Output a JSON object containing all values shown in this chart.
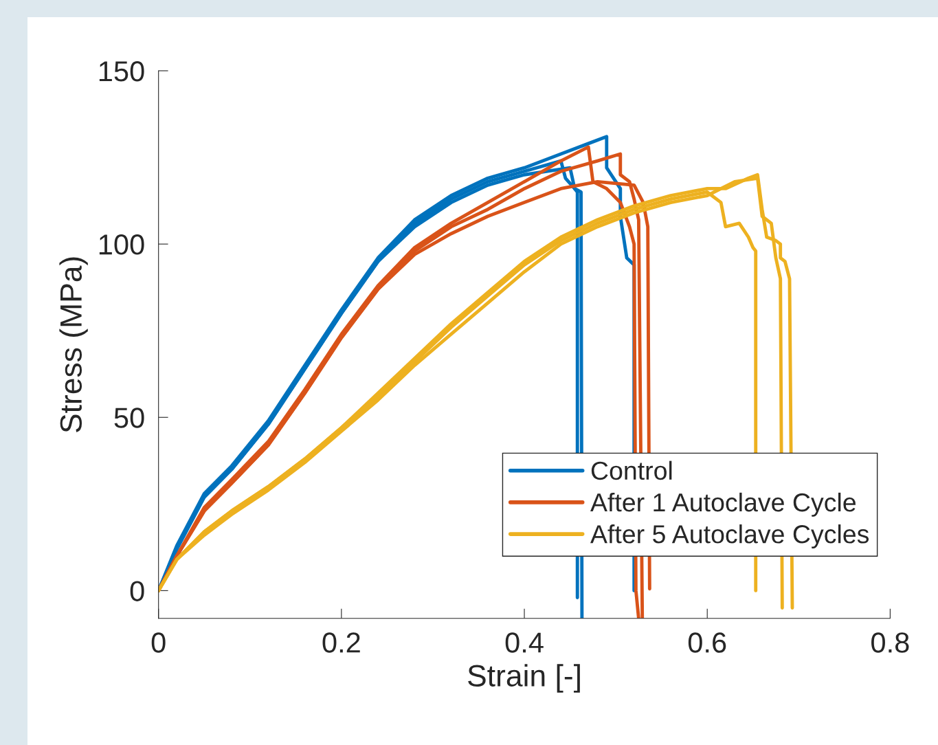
{
  "chart_data": {
    "type": "line",
    "xlabel": "Strain [-]",
    "ylabel": "Stress (MPa)",
    "xlim": [
      0,
      0.8
    ],
    "ylim": [
      -8,
      150
    ],
    "xticks": [
      0,
      0.2,
      0.4,
      0.6,
      0.8
    ],
    "yticks": [
      0,
      50,
      100,
      150
    ],
    "grid": false,
    "legend": "bottom right",
    "marker": "none",
    "line_style": "solid",
    "series": [
      {
        "name": "Control",
        "color": "#0072bd",
        "x": [
          0,
          0.02,
          0.05,
          0.08,
          0.12,
          0.16,
          0.2,
          0.24,
          0.28,
          0.32,
          0.36,
          0.4,
          0.44,
          0.47,
          0.49,
          0.49,
          0.505,
          0.505,
          0.512,
          0.52,
          0.52
        ],
        "values": [
          0,
          13,
          28,
          36,
          49,
          65,
          81,
          96,
          107,
          114,
          119,
          122,
          126,
          129,
          131,
          122,
          116,
          108,
          96,
          94,
          0
        ]
      },
      {
        "color": "#0072bd",
        "x": [
          0,
          0.02,
          0.05,
          0.08,
          0.12,
          0.16,
          0.2,
          0.24,
          0.28,
          0.32,
          0.36,
          0.4,
          0.44,
          0.445,
          0.455,
          0.458,
          0.458
        ],
        "values": [
          0,
          12,
          27,
          35,
          48,
          64,
          80,
          95,
          106,
          113,
          118,
          121,
          124,
          119,
          116,
          115,
          -2
        ]
      },
      {
        "color": "#0072bd",
        "x": [
          0,
          0.02,
          0.05,
          0.08,
          0.12,
          0.16,
          0.2,
          0.24,
          0.28,
          0.32,
          0.36,
          0.4,
          0.45,
          0.455,
          0.462,
          0.463
        ],
        "values": [
          0,
          12,
          27,
          35,
          48,
          64,
          80,
          95,
          105,
          112,
          117,
          120,
          122,
          116,
          115,
          -8
        ]
      },
      {
        "name": "After 1 Autoclave Cycle",
        "color": "#d95319",
        "x": [
          0,
          0.02,
          0.05,
          0.08,
          0.12,
          0.16,
          0.2,
          0.24,
          0.28,
          0.32,
          0.36,
          0.4,
          0.44,
          0.47,
          0.475,
          0.49,
          0.505,
          0.515,
          0.52,
          0.522,
          0.525
        ],
        "values": [
          0,
          10,
          24,
          32,
          43,
          58,
          74,
          88,
          99,
          106,
          112,
          118,
          124,
          128,
          118,
          116,
          112,
          105,
          100,
          0,
          -8
        ]
      },
      {
        "color": "#d95319",
        "x": [
          0,
          0.02,
          0.05,
          0.08,
          0.12,
          0.16,
          0.2,
          0.24,
          0.28,
          0.32,
          0.36,
          0.4,
          0.44,
          0.48,
          0.505,
          0.505,
          0.515,
          0.52,
          0.525,
          0.529
        ],
        "values": [
          0,
          10,
          23,
          31,
          42,
          57,
          73,
          87,
          98,
          105,
          110,
          116,
          121,
          124,
          126,
          120,
          118,
          113,
          107,
          -8
        ]
      },
      {
        "color": "#d95319",
        "x": [
          0,
          0.02,
          0.05,
          0.08,
          0.12,
          0.16,
          0.2,
          0.24,
          0.28,
          0.32,
          0.36,
          0.4,
          0.44,
          0.48,
          0.52,
          0.53,
          0.535,
          0.537
        ],
        "values": [
          0,
          10,
          23,
          31,
          42,
          57,
          73,
          87,
          97,
          103,
          108,
          112,
          116,
          118,
          117,
          112,
          105,
          0.5
        ]
      },
      {
        "name": "After 5 Autoclave Cycles",
        "color": "#edb120",
        "x": [
          0,
          0.02,
          0.05,
          0.08,
          0.12,
          0.16,
          0.2,
          0.24,
          0.28,
          0.32,
          0.36,
          0.4,
          0.44,
          0.48,
          0.52,
          0.56,
          0.6,
          0.62,
          0.645,
          0.655,
          0.66,
          0.665,
          0.675,
          0.68,
          0.68,
          0.685,
          0.69,
          0.693
        ],
        "values": [
          0,
          9,
          17,
          23,
          30,
          38,
          47,
          57,
          67,
          77,
          86,
          95,
          102,
          107,
          111,
          114,
          116,
          116,
          119,
          120,
          110,
          102,
          101,
          100,
          96,
          95,
          90,
          -5
        ]
      },
      {
        "color": "#edb120",
        "x": [
          0,
          0.02,
          0.05,
          0.08,
          0.12,
          0.16,
          0.2,
          0.24,
          0.28,
          0.32,
          0.36,
          0.4,
          0.44,
          0.48,
          0.52,
          0.56,
          0.6,
          0.615,
          0.62,
          0.635,
          0.645,
          0.65,
          0.653,
          0.653
        ],
        "values": [
          0,
          9,
          17,
          23,
          30,
          38,
          47,
          56,
          66,
          76,
          85,
          94,
          101,
          106,
          110,
          113,
          115,
          112,
          105,
          106,
          102,
          99,
          98,
          0
        ]
      },
      {
        "color": "#edb120",
        "x": [
          0,
          0.02,
          0.05,
          0.08,
          0.12,
          0.16,
          0.2,
          0.24,
          0.28,
          0.32,
          0.36,
          0.4,
          0.44,
          0.48,
          0.52,
          0.56,
          0.6,
          0.63,
          0.655,
          0.66,
          0.67,
          0.675,
          0.68,
          0.682
        ],
        "values": [
          0,
          9,
          16,
          22,
          29,
          37,
          46,
          55,
          65,
          74,
          83,
          92,
          100,
          105,
          109,
          112,
          114,
          118,
          119,
          108,
          106,
          96,
          90,
          -5
        ]
      }
    ]
  }
}
